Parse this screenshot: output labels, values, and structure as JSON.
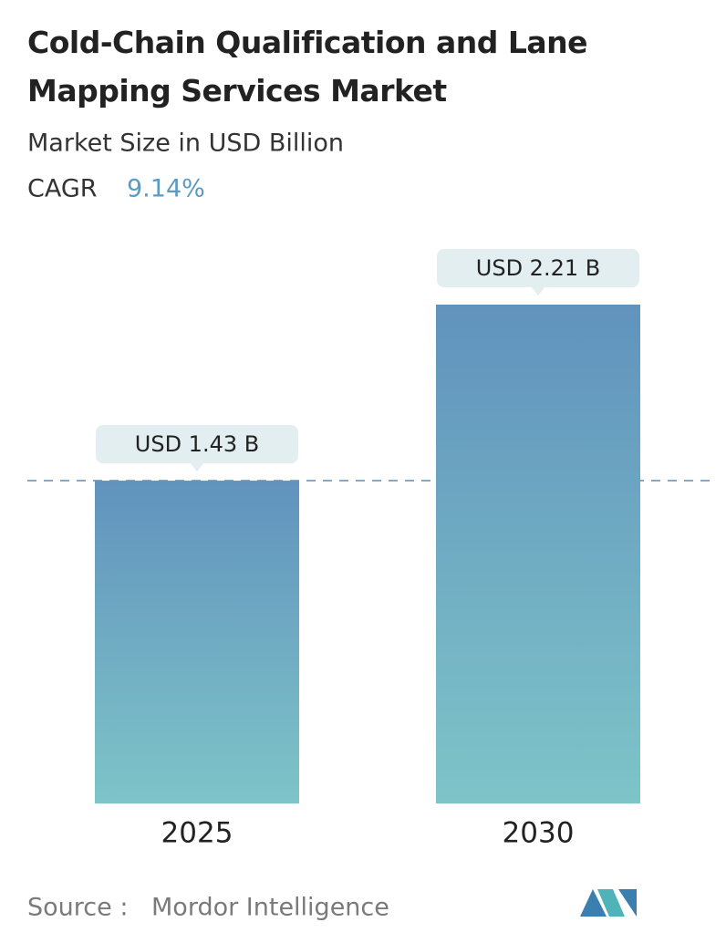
{
  "chart_data": {
    "type": "bar",
    "title": "Cold-Chain Qualification and Lane Mapping Services Market",
    "subtitle": "Market Size in USD Billion",
    "cagr_label": "CAGR",
    "cagr": "9.14%",
    "categories": [
      "2025",
      "2030"
    ],
    "values": [
      1.43,
      2.21
    ],
    "value_labels": [
      "USD 1.43 B",
      "USD 2.21 B"
    ],
    "color": "#6a9fc3",
    "source_label": "Source :",
    "source": "Mordor Intelligence"
  }
}
